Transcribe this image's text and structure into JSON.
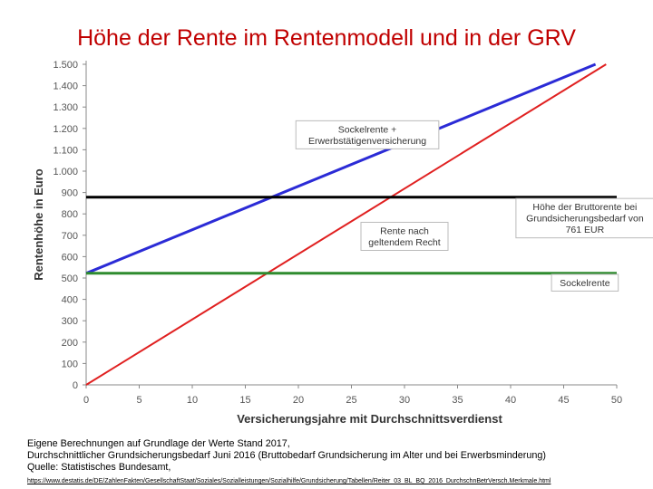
{
  "chart_data": {
    "type": "line",
    "title": "Höhe der Rente im Rentenmodell und in der GRV",
    "xlabel": "Versicherungsjahre mit Durchschnittsverdienst",
    "ylabel": "Rentenhöhe in Euro",
    "xlim": [
      0,
      50
    ],
    "ylim": [
      0,
      1500
    ],
    "x_ticks": [
      0,
      5,
      10,
      15,
      20,
      25,
      30,
      35,
      40,
      45,
      50
    ],
    "y_ticks": [
      0,
      100,
      200,
      300,
      400,
      500,
      600,
      700,
      800,
      900,
      1000,
      1100,
      1200,
      1300,
      1400,
      1500
    ],
    "y_tick_labels": [
      "0",
      "100",
      "200",
      "300",
      "400",
      "500",
      "600",
      "700",
      "800",
      "900",
      "1.000",
      "1.100",
      "1.200",
      "1.300",
      "1.400",
      "1.500"
    ],
    "grid": false,
    "series": [
      {
        "key": "blue",
        "color": "#2b2bd6",
        "x": [
          0,
          48
        ],
        "y": [
          522,
          1500
        ]
      },
      {
        "key": "red",
        "color": "#e02020",
        "x": [
          0,
          49
        ],
        "y": [
          0,
          1500
        ]
      },
      {
        "key": "green",
        "color": "#2e8b2e",
        "x": [
          0,
          50
        ],
        "y": [
          522,
          522
        ]
      },
      {
        "key": "black",
        "color": "#000000",
        "x": [
          0,
          50
        ],
        "y": [
          878,
          878
        ]
      }
    ],
    "annotations": [
      {
        "key": "blue",
        "x": 26.5,
        "y": 1170,
        "lines": [
          "Sockelrente +",
          "Erwerbstätigenversicherung"
        ]
      },
      {
        "key": "red",
        "x": 30,
        "y": 695,
        "lines": [
          "Rente nach",
          "geltendem Recht"
        ]
      },
      {
        "key": "black",
        "x": 47,
        "y": 780,
        "lines": [
          "Höhe der Bruttorente bei",
          "Grundsicherungsbedarf von",
          "761 EUR"
        ]
      },
      {
        "key": "green",
        "x": 47,
        "y": 478,
        "lines": [
          "Sockelrente"
        ]
      }
    ]
  },
  "source": {
    "line1": "Eigene Berechnungen auf Grundlage der Werte Stand 2017,",
    "line2": "Durchschnittlicher Grundsicherungsbedarf Juni 2016 (Bruttobedarf Grundsicherung im Alter und bei Erwerbsminderung)",
    "line3": "Quelle: Statistisches Bundesamt,",
    "url": "https://www.destatis.de/DE/ZahlenFakten/GesellschaftStaat/Soziales/Sozialleistungen/Sozialhilfe/Grundsicherung/Tabellen/Reiter_03_BL_BQ_2016_DurchschnBetrVersch.Merkmale.html"
  }
}
